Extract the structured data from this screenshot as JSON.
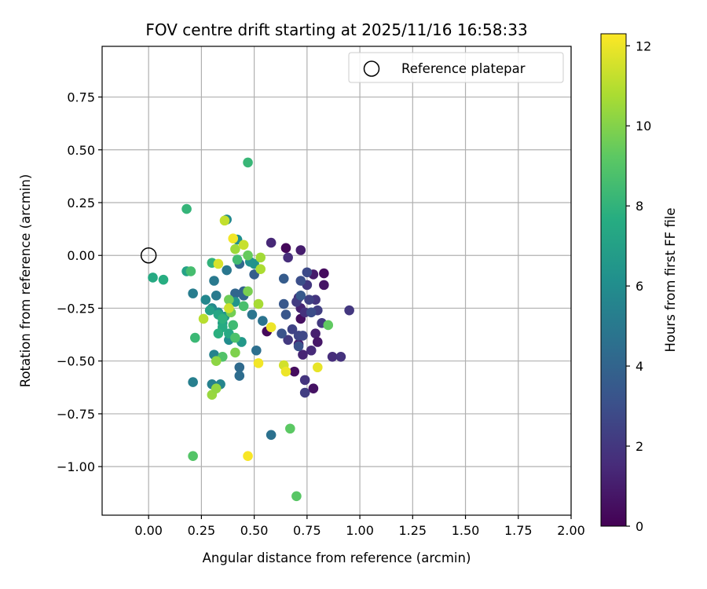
{
  "chart_data": {
    "type": "scatter",
    "title": "FOV centre drift starting at 2025/11/16 16:58:33",
    "xlabel": "Angular distance from reference (arcmin)",
    "ylabel": "Rotation from reference (arcmin)",
    "colorbar_label": "Hours from first FF file",
    "colormap": "viridis",
    "xlim": [
      -0.22,
      2.0
    ],
    "ylim": [
      -1.23,
      0.99
    ],
    "clim": [
      0,
      12.3
    ],
    "grid": true,
    "xticks": [
      0.0,
      0.25,
      0.5,
      0.75,
      1.0,
      1.25,
      1.5,
      1.75,
      2.0
    ],
    "xtick_labels": [
      "0.00",
      "0.25",
      "0.50",
      "0.75",
      "1.00",
      "1.25",
      "1.50",
      "1.75",
      "2.00"
    ],
    "yticks": [
      -1.0,
      -0.75,
      -0.5,
      -0.25,
      0.0,
      0.25,
      0.5,
      0.75
    ],
    "ytick_labels": [
      "−1.00",
      "−0.75",
      "−0.50",
      "−0.25",
      "0.00",
      "0.25",
      "0.50",
      "0.75"
    ],
    "cticks": [
      0,
      2,
      4,
      6,
      8,
      10,
      12
    ],
    "ctick_labels": [
      "0",
      "2",
      "4",
      "6",
      "8",
      "10",
      "12"
    ],
    "legend": {
      "label": "Reference platepar",
      "position": "upper right"
    },
    "reference_point": {
      "x": 0.0,
      "y": 0.0
    },
    "points": [
      {
        "x": 0.56,
        "y": -0.36,
        "t": 0.3
      },
      {
        "x": 0.65,
        "y": 0.035,
        "t": 0.2
      },
      {
        "x": 0.72,
        "y": -0.3,
        "t": 0.5
      },
      {
        "x": 0.69,
        "y": -0.55,
        "t": 0.4
      },
      {
        "x": 0.78,
        "y": -0.63,
        "t": 0.6
      },
      {
        "x": 0.83,
        "y": -0.085,
        "t": 0.4
      },
      {
        "x": 0.83,
        "y": -0.14,
        "t": 0.7
      },
      {
        "x": 0.78,
        "y": -0.09,
        "t": 0.9
      },
      {
        "x": 0.72,
        "y": 0.025,
        "t": 1.0
      },
      {
        "x": 0.79,
        "y": -0.37,
        "t": 1.1
      },
      {
        "x": 0.8,
        "y": -0.41,
        "t": 0.8
      },
      {
        "x": 0.72,
        "y": -0.25,
        "t": 1.2
      },
      {
        "x": 0.73,
        "y": -0.47,
        "t": 1.3
      },
      {
        "x": 0.71,
        "y": -0.42,
        "t": 1.0
      },
      {
        "x": 0.77,
        "y": -0.45,
        "t": 1.5
      },
      {
        "x": 0.58,
        "y": 0.06,
        "t": 1.4
      },
      {
        "x": 0.66,
        "y": -0.01,
        "t": 1.6
      },
      {
        "x": 0.71,
        "y": -0.2,
        "t": 1.7
      },
      {
        "x": 0.74,
        "y": -0.27,
        "t": 1.8
      },
      {
        "x": 0.75,
        "y": -0.14,
        "t": 2.0
      },
      {
        "x": 0.79,
        "y": -0.21,
        "t": 1.9
      },
      {
        "x": 0.82,
        "y": -0.32,
        "t": 2.1
      },
      {
        "x": 0.87,
        "y": -0.48,
        "t": 1.6
      },
      {
        "x": 0.91,
        "y": -0.48,
        "t": 1.8
      },
      {
        "x": 0.95,
        "y": -0.26,
        "t": 2.0
      },
      {
        "x": 0.74,
        "y": -0.59,
        "t": 1.9
      },
      {
        "x": 0.74,
        "y": -0.65,
        "t": 2.3
      },
      {
        "x": 0.7,
        "y": -0.22,
        "t": 2.2
      },
      {
        "x": 0.76,
        "y": -0.21,
        "t": 2.4
      },
      {
        "x": 0.8,
        "y": -0.26,
        "t": 2.3
      },
      {
        "x": 0.68,
        "y": -0.35,
        "t": 2.5
      },
      {
        "x": 0.66,
        "y": -0.4,
        "t": 2.1
      },
      {
        "x": 0.71,
        "y": -0.38,
        "t": 2.6
      },
      {
        "x": 0.73,
        "y": -0.38,
        "t": 2.7
      },
      {
        "x": 0.75,
        "y": -0.08,
        "t": 2.8
      },
      {
        "x": 0.72,
        "y": -0.12,
        "t": 3.0
      },
      {
        "x": 0.77,
        "y": -0.27,
        "t": 2.9
      },
      {
        "x": 0.71,
        "y": -0.43,
        "t": 3.1
      },
      {
        "x": 0.63,
        "y": -0.37,
        "t": 3.2
      },
      {
        "x": 0.65,
        "y": -0.28,
        "t": 3.3
      },
      {
        "x": 0.64,
        "y": -0.23,
        "t": 3.4
      },
      {
        "x": 0.64,
        "y": -0.11,
        "t": 3.6
      },
      {
        "x": 0.72,
        "y": -0.19,
        "t": 3.5
      },
      {
        "x": 0.5,
        "y": -0.09,
        "t": 3.7
      },
      {
        "x": 0.45,
        "y": -0.17,
        "t": 3.9
      },
      {
        "x": 0.45,
        "y": -0.19,
        "t": 4.0
      },
      {
        "x": 0.43,
        "y": -0.04,
        "t": 4.2
      },
      {
        "x": 0.41,
        "y": -0.18,
        "t": 4.1
      },
      {
        "x": 0.43,
        "y": -0.53,
        "t": 4.3
      },
      {
        "x": 0.43,
        "y": -0.57,
        "t": 4.4
      },
      {
        "x": 0.51,
        "y": -0.45,
        "t": 4.5
      },
      {
        "x": 0.58,
        "y": -0.85,
        "t": 4.6
      },
      {
        "x": 0.54,
        "y": -0.31,
        "t": 4.7
      },
      {
        "x": 0.49,
        "y": -0.28,
        "t": 4.8
      },
      {
        "x": 0.37,
        "y": -0.07,
        "t": 4.9
      },
      {
        "x": 0.31,
        "y": -0.12,
        "t": 5.0
      },
      {
        "x": 0.32,
        "y": -0.19,
        "t": 5.1
      },
      {
        "x": 0.21,
        "y": -0.18,
        "t": 5.2
      },
      {
        "x": 0.21,
        "y": -0.6,
        "t": 5.3
      },
      {
        "x": 0.3,
        "y": -0.61,
        "t": 5.4
      },
      {
        "x": 0.34,
        "y": -0.61,
        "t": 5.6
      },
      {
        "x": 0.31,
        "y": -0.47,
        "t": 5.5
      },
      {
        "x": 0.27,
        "y": -0.21,
        "t": 5.7
      },
      {
        "x": 0.3,
        "y": -0.25,
        "t": 5.8
      },
      {
        "x": 0.33,
        "y": -0.27,
        "t": 5.9
      },
      {
        "x": 0.38,
        "y": -0.4,
        "t": 6.0
      },
      {
        "x": 0.37,
        "y": 0.17,
        "t": 5.8
      },
      {
        "x": 0.42,
        "y": 0.075,
        "t": 6.1
      },
      {
        "x": 0.48,
        "y": -0.03,
        "t": 6.2
      },
      {
        "x": 0.5,
        "y": -0.04,
        "t": 6.3
      },
      {
        "x": 0.44,
        "y": -0.41,
        "t": 6.6
      },
      {
        "x": 0.41,
        "y": -0.22,
        "t": 6.4
      },
      {
        "x": 0.36,
        "y": -0.29,
        "t": 6.5
      },
      {
        "x": 0.35,
        "y": -0.32,
        "t": 6.8
      },
      {
        "x": 0.29,
        "y": -0.26,
        "t": 7.0
      },
      {
        "x": 0.18,
        "y": -0.075,
        "t": 7.1
      },
      {
        "x": 0.02,
        "y": -0.105,
        "t": 7.5
      },
      {
        "x": 0.07,
        "y": -0.115,
        "t": 7.7
      },
      {
        "x": 0.33,
        "y": -0.28,
        "t": 7.3
      },
      {
        "x": 0.38,
        "y": -0.37,
        "t": 7.4
      },
      {
        "x": 0.35,
        "y": -0.34,
        "t": 7.6
      },
      {
        "x": 0.33,
        "y": -0.37,
        "t": 7.8
      },
      {
        "x": 0.35,
        "y": -0.3,
        "t": 7.9
      },
      {
        "x": 0.3,
        "y": -0.035,
        "t": 8.0
      },
      {
        "x": 0.18,
        "y": 0.22,
        "t": 8.1
      },
      {
        "x": 0.47,
        "y": 0.44,
        "t": 8.2
      },
      {
        "x": 0.2,
        "y": -0.075,
        "t": 8.6
      },
      {
        "x": 0.22,
        "y": -0.39,
        "t": 8.3
      },
      {
        "x": 0.4,
        "y": -0.33,
        "t": 8.4
      },
      {
        "x": 0.42,
        "y": -0.02,
        "t": 8.5
      },
      {
        "x": 0.45,
        "y": -0.24,
        "t": 8.7
      },
      {
        "x": 0.41,
        "y": -0.39,
        "t": 8.8
      },
      {
        "x": 0.35,
        "y": -0.48,
        "t": 8.9
      },
      {
        "x": 0.21,
        "y": -0.95,
        "t": 9.0
      },
      {
        "x": 0.67,
        "y": -0.82,
        "t": 9.2
      },
      {
        "x": 0.7,
        "y": -1.14,
        "t": 9.1
      },
      {
        "x": 0.85,
        "y": -0.33,
        "t": 9.3
      },
      {
        "x": 0.47,
        "y": 0.0,
        "t": 9.4
      },
      {
        "x": 0.38,
        "y": -0.21,
        "t": 9.6
      },
      {
        "x": 0.39,
        "y": -0.27,
        "t": 9.7
      },
      {
        "x": 0.47,
        "y": -0.17,
        "t": 9.8
      },
      {
        "x": 0.41,
        "y": -0.46,
        "t": 9.9
      },
      {
        "x": 0.32,
        "y": -0.5,
        "t": 10.2
      },
      {
        "x": 0.3,
        "y": -0.66,
        "t": 10.4
      },
      {
        "x": 0.32,
        "y": -0.63,
        "t": 10.3
      },
      {
        "x": 0.41,
        "y": 0.03,
        "t": 10.5
      },
      {
        "x": 0.53,
        "y": -0.01,
        "t": 10.6
      },
      {
        "x": 0.52,
        "y": -0.23,
        "t": 10.7
      },
      {
        "x": 0.53,
        "y": -0.065,
        "t": 10.8
      },
      {
        "x": 0.26,
        "y": -0.3,
        "t": 11.0
      },
      {
        "x": 0.36,
        "y": 0.165,
        "t": 11.2
      },
      {
        "x": 0.45,
        "y": 0.05,
        "t": 11.3
      },
      {
        "x": 0.38,
        "y": -0.25,
        "t": 11.4
      },
      {
        "x": 0.64,
        "y": -0.52,
        "t": 11.5
      },
      {
        "x": 0.33,
        "y": -0.04,
        "t": 11.6
      },
      {
        "x": 0.8,
        "y": -0.53,
        "t": 11.9
      },
      {
        "x": 0.65,
        "y": -0.55,
        "t": 12.0
      },
      {
        "x": 0.52,
        "y": -0.51,
        "t": 12.1
      },
      {
        "x": 0.47,
        "y": -0.95,
        "t": 12.2
      },
      {
        "x": 0.58,
        "y": -0.34,
        "t": 12.0
      },
      {
        "x": 0.4,
        "y": 0.08,
        "t": 12.1
      }
    ]
  }
}
